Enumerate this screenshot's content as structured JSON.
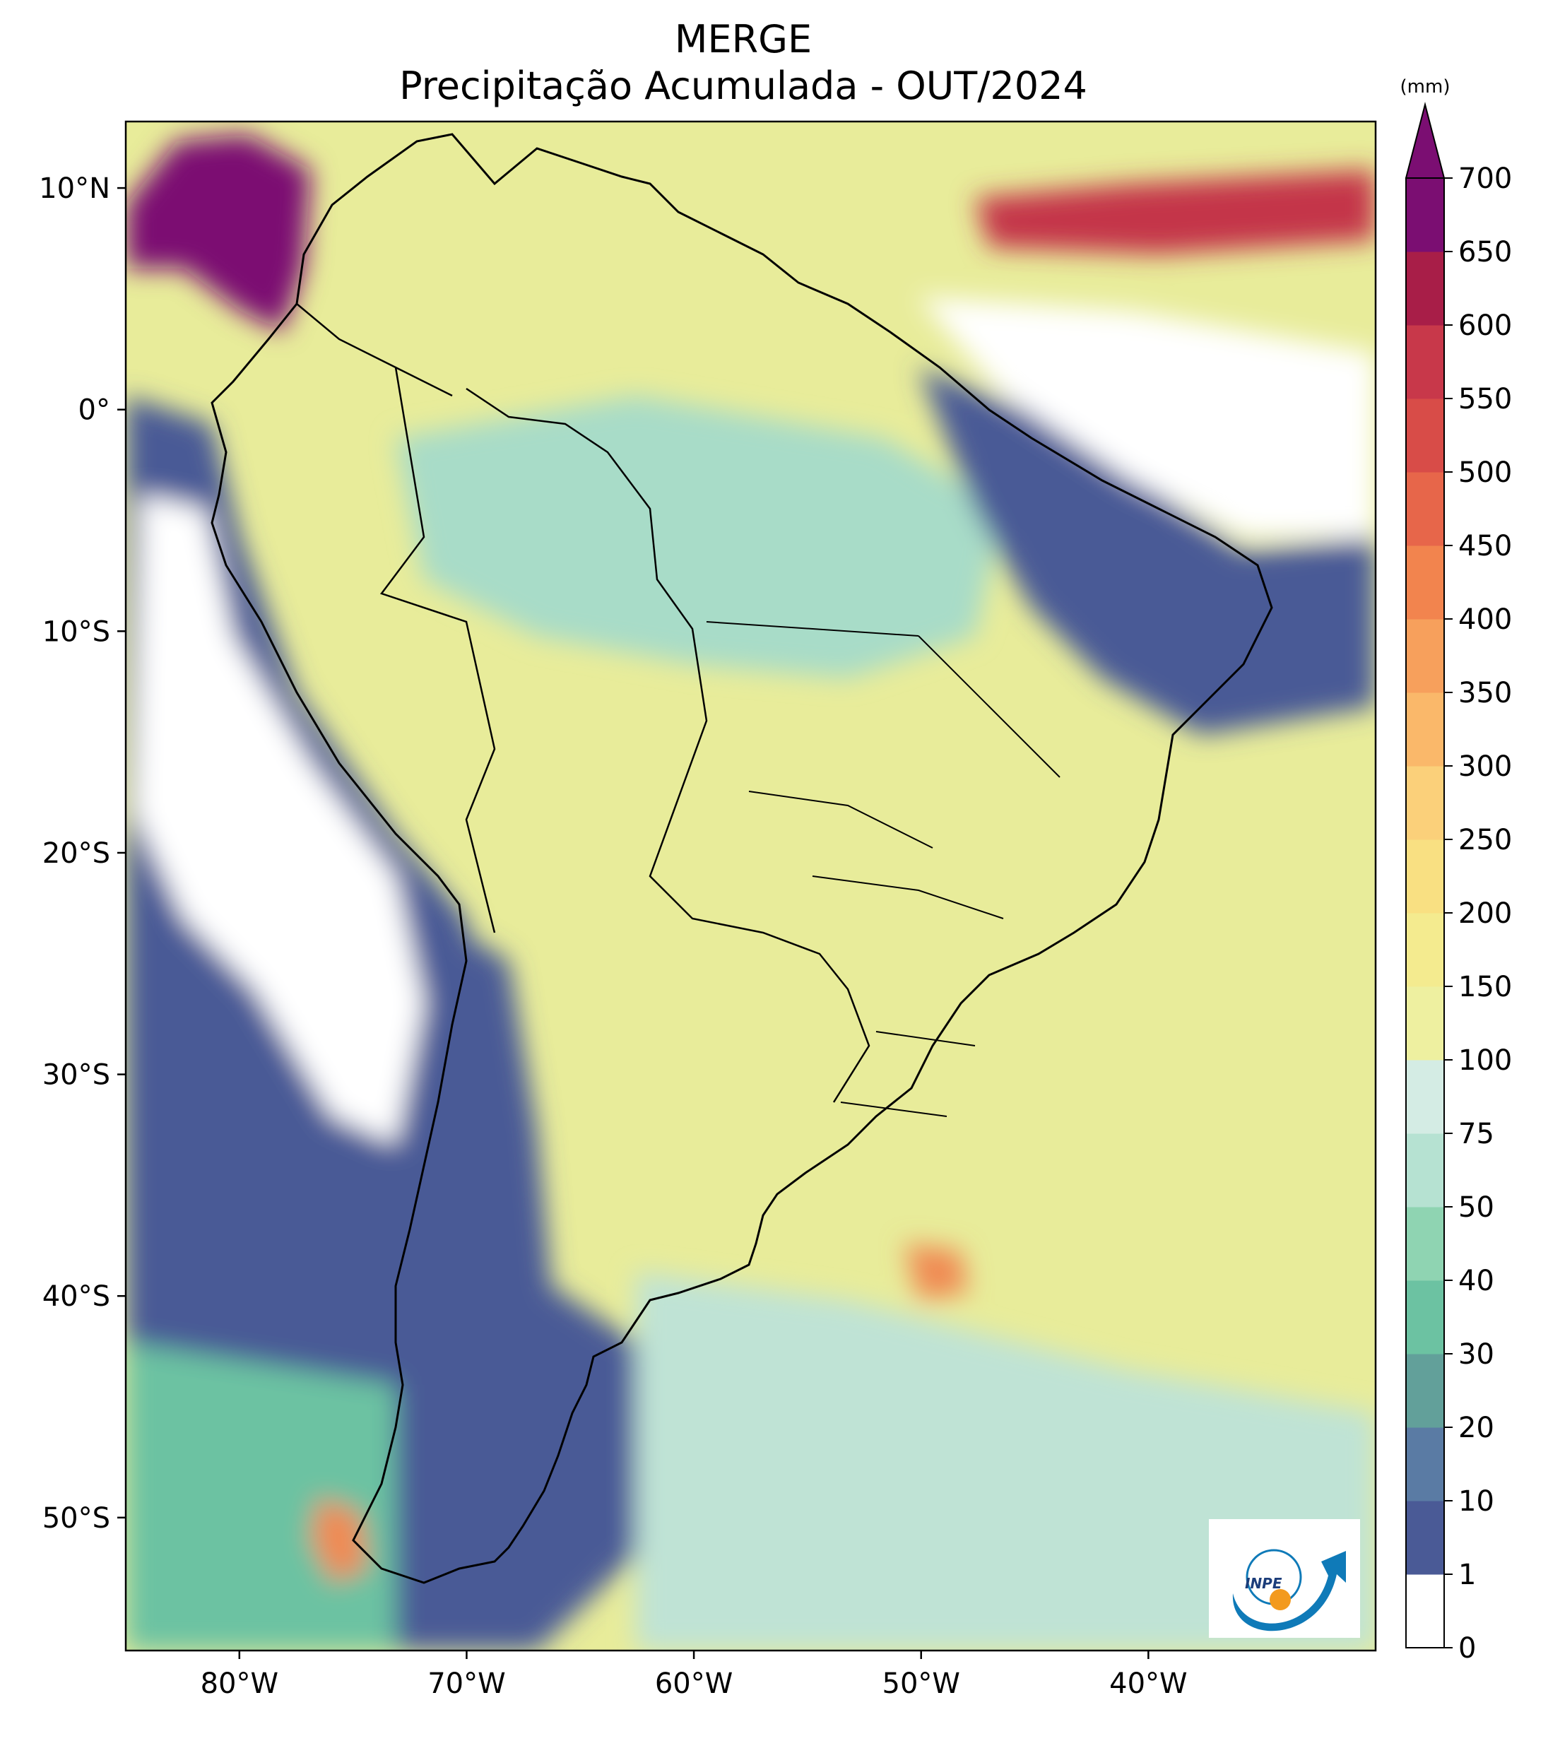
{
  "figure": {
    "title_line1": "MERGE",
    "title_line2": "Precipitação Acumulada - OUT/2024"
  },
  "map": {
    "lon_range": [
      -85,
      -30
    ],
    "lat_range": [
      -56,
      13
    ],
    "lon_ticks": [
      {
        "value": -80,
        "label": "80°W"
      },
      {
        "value": -70,
        "label": "70°W"
      },
      {
        "value": -60,
        "label": "60°W"
      },
      {
        "value": -50,
        "label": "50°W"
      },
      {
        "value": -40,
        "label": "40°W"
      }
    ],
    "lat_ticks": [
      {
        "value": 10,
        "label": "10°N"
      },
      {
        "value": 0,
        "label": "0°"
      },
      {
        "value": -10,
        "label": "10°S"
      },
      {
        "value": -20,
        "label": "20°S"
      },
      {
        "value": -30,
        "label": "30°S"
      },
      {
        "value": -40,
        "label": "40°S"
      },
      {
        "value": -50,
        "label": "50°S"
      }
    ],
    "ocean_base_color": "#e8ec9a",
    "continent_base_color": "#eef0a0",
    "rain_regions": [
      {
        "name": "pacific-dry",
        "color": "#4a5a96"
      },
      {
        "name": "pacific-very-dry",
        "color": "#ffffff"
      },
      {
        "name": "nordeste-dry",
        "color": "#4a5a96"
      },
      {
        "name": "patagonia-dry",
        "color": "#4a5a96"
      },
      {
        "name": "colombia-wet",
        "color": "#7b0e72"
      },
      {
        "name": "atlantic-wet",
        "color": "#c4344a"
      },
      {
        "name": "amazon-moist",
        "color": "#a8dcc8"
      },
      {
        "name": "south-atlantic-moist",
        "color": "#bfe3d5"
      },
      {
        "name": "southern-ocean-teal",
        "color": "#6cc2a2"
      },
      {
        "name": "chile-coast-wet",
        "color": "#f08a52"
      }
    ]
  },
  "colorbar": {
    "unit": "(mm)",
    "ticks": [
      "0",
      "1",
      "10",
      "20",
      "30",
      "40",
      "50",
      "75",
      "100",
      "150",
      "200",
      "250",
      "300",
      "350",
      "400",
      "450",
      "500",
      "550",
      "600",
      "650",
      "700"
    ],
    "colors": [
      "#ffffff",
      "#4a5a96",
      "#5a7ba4",
      "#62a09a",
      "#6cc2a2",
      "#8fd4b2",
      "#b6e2d2",
      "#d4ece4",
      "#eef0a0",
      "#f4eb8f",
      "#f9e082",
      "#fbd07a",
      "#fab86a",
      "#f7a05c",
      "#f2844e",
      "#e7664a",
      "#d84c48",
      "#c8384a",
      "#a81e48",
      "#7b0e72"
    ]
  },
  "logo": {
    "text": "INPE",
    "colors": {
      "swoosh": "#0f7ab8",
      "dot": "#f39a1e"
    }
  }
}
